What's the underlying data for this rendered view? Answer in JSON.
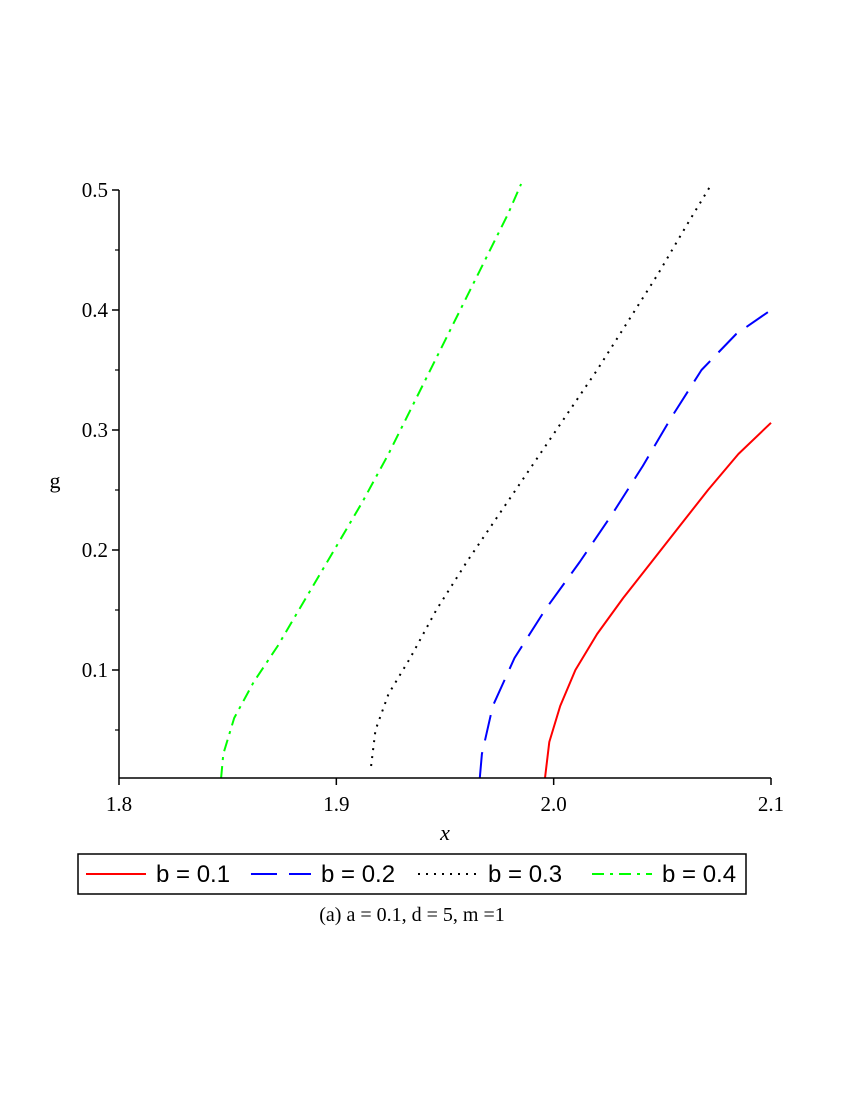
{
  "chart_data": {
    "type": "line",
    "xlabel": "x",
    "ylabel": "g",
    "caption": "(a) a = 0.1, d = 5, m =1",
    "xlim": [
      1.8,
      2.1
    ],
    "ylim": [
      0.01,
      0.5
    ],
    "x_ticks": [
      {
        "value": 1.8,
        "label": "1.8"
      },
      {
        "value": 1.9,
        "label": "1.9"
      },
      {
        "value": 2.0,
        "label": "2.0"
      },
      {
        "value": 2.1,
        "label": "2.1"
      }
    ],
    "y_ticks": [
      {
        "value": 0.1,
        "label": "0.1"
      },
      {
        "value": 0.2,
        "label": "0.2"
      },
      {
        "value": 0.3,
        "label": "0.3"
      },
      {
        "value": 0.4,
        "label": "0.4"
      },
      {
        "value": 0.5,
        "label": "0.5"
      }
    ],
    "y_minor_ticks": [
      0.05,
      0.15,
      0.25,
      0.35,
      0.45
    ],
    "legend_position": "bottom",
    "series": [
      {
        "name": "b = 0.1",
        "color": "#ff0000",
        "dash": "solid",
        "points": [
          [
            1.996,
            0.01
          ],
          [
            1.998,
            0.04
          ],
          [
            2.003,
            0.07
          ],
          [
            2.01,
            0.1
          ],
          [
            2.02,
            0.13
          ],
          [
            2.032,
            0.16
          ],
          [
            2.045,
            0.19
          ],
          [
            2.058,
            0.22
          ],
          [
            2.071,
            0.25
          ],
          [
            2.085,
            0.28
          ],
          [
            2.1,
            0.306
          ]
        ]
      },
      {
        "name": "b = 0.2",
        "color": "#0000ff",
        "dash": "long-dash",
        "points": [
          [
            1.966,
            0.01
          ],
          [
            1.967,
            0.03
          ],
          [
            1.972,
            0.07
          ],
          [
            1.982,
            0.11
          ],
          [
            1.996,
            0.15
          ],
          [
            2.012,
            0.19
          ],
          [
            2.027,
            0.23
          ],
          [
            2.041,
            0.27
          ],
          [
            2.054,
            0.31
          ],
          [
            2.068,
            0.35
          ],
          [
            2.084,
            0.38
          ],
          [
            2.1,
            0.4
          ]
        ]
      },
      {
        "name": "b = 0.3",
        "color": "#000000",
        "dash": "dotted",
        "points": [
          [
            1.916,
            0.02
          ],
          [
            1.918,
            0.05
          ],
          [
            1.924,
            0.08
          ],
          [
            1.934,
            0.11
          ],
          [
            1.946,
            0.15
          ],
          [
            1.96,
            0.19
          ],
          [
            1.975,
            0.23
          ],
          [
            1.99,
            0.27
          ],
          [
            2.005,
            0.31
          ],
          [
            2.02,
            0.35
          ],
          [
            2.034,
            0.39
          ],
          [
            2.048,
            0.43
          ],
          [
            2.061,
            0.47
          ],
          [
            2.072,
            0.503
          ]
        ]
      },
      {
        "name": "b = 0.4",
        "color": "#00ff00",
        "dash": "dash-dot",
        "points": [
          [
            1.847,
            0.01
          ],
          [
            1.848,
            0.03
          ],
          [
            1.853,
            0.06
          ],
          [
            1.862,
            0.09
          ],
          [
            1.873,
            0.12
          ],
          [
            1.886,
            0.16
          ],
          [
            1.899,
            0.2
          ],
          [
            1.912,
            0.24
          ],
          [
            1.924,
            0.28
          ],
          [
            1.935,
            0.32
          ],
          [
            1.946,
            0.36
          ],
          [
            1.957,
            0.4
          ],
          [
            1.968,
            0.44
          ],
          [
            1.979,
            0.48
          ],
          [
            1.985,
            0.505
          ]
        ]
      }
    ]
  }
}
